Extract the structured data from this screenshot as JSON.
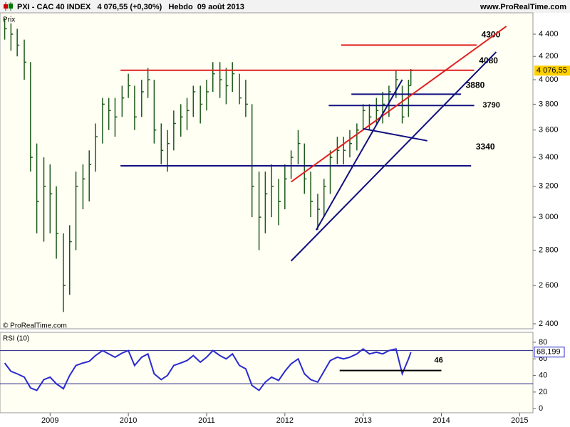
{
  "chart_data": [
    {
      "type": "ohlc",
      "title": "PXI - CAC 40 INDEX   4 076,55 (+0,30%)   Hebdo  09 août 2013",
      "source": "www.ProRealTime.com",
      "y_label": "Prix",
      "copyright": "© ProRealTime.com",
      "x": [
        2008.42,
        2008.5,
        2008.58,
        2008.67,
        2008.75,
        2008.83,
        2008.92,
        2009.0,
        2009.08,
        2009.17,
        2009.25,
        2009.33,
        2009.42,
        2009.5,
        2009.58,
        2009.67,
        2009.75,
        2009.83,
        2009.92,
        2010.0,
        2010.08,
        2010.17,
        2010.25,
        2010.33,
        2010.42,
        2010.5,
        2010.58,
        2010.67,
        2010.75,
        2010.83,
        2010.92,
        2011.0,
        2011.08,
        2011.17,
        2011.25,
        2011.33,
        2011.42,
        2011.5,
        2011.58,
        2011.67,
        2011.75,
        2011.83,
        2011.92,
        2012.0,
        2012.08,
        2012.17,
        2012.25,
        2012.33,
        2012.42,
        2012.5,
        2012.58,
        2012.67,
        2012.75,
        2012.83,
        2012.92,
        2013.0,
        2013.08,
        2013.17,
        2013.25,
        2013.33,
        2013.42,
        2013.5,
        2013.58,
        2013.61
      ],
      "close": [
        4450,
        4400,
        4300,
        4150,
        3400,
        3100,
        3200,
        3150,
        2900,
        2600,
        2850,
        3200,
        3250,
        3350,
        3550,
        3800,
        3750,
        3700,
        3850,
        3950,
        3700,
        3900,
        4000,
        3600,
        3450,
        3500,
        3650,
        3700,
        3750,
        3900,
        3800,
        3900,
        4050,
        4000,
        3950,
        4050,
        3850,
        3800,
        3200,
        3000,
        3150,
        3200,
        3100,
        3250,
        3400,
        3500,
        3250,
        3100,
        3050,
        3200,
        3400,
        3450,
        3450,
        3500,
        3600,
        3750,
        3700,
        3750,
        3800,
        3900,
        4000,
        3700,
        3950,
        4077
      ],
      "high": [
        4550,
        4500,
        4450,
        4350,
        4150,
        3500,
        3400,
        3350,
        3200,
        2900,
        2950,
        3300,
        3350,
        3450,
        3650,
        3850,
        3850,
        3850,
        3950,
        4050,
        3950,
        4000,
        4100,
        4000,
        3650,
        3600,
        3750,
        3800,
        3850,
        3950,
        3950,
        4000,
        4150,
        4150,
        4100,
        4150,
        4050,
        4000,
        3800,
        3300,
        3300,
        3350,
        3250,
        3350,
        3450,
        3600,
        3500,
        3300,
        3150,
        3250,
        3450,
        3550,
        3550,
        3600,
        3650,
        3800,
        3800,
        3850,
        3900,
        3950,
        4080,
        3950,
        4000,
        4090
      ],
      "low": [
        4350,
        4250,
        4200,
        4000,
        3300,
        2900,
        2850,
        2900,
        2750,
        2460,
        2550,
        2800,
        3050,
        3100,
        3300,
        3500,
        3600,
        3550,
        3700,
        3850,
        3600,
        3700,
        3850,
        3500,
        3350,
        3300,
        3450,
        3550,
        3600,
        3700,
        3650,
        3750,
        3900,
        3850,
        3800,
        3900,
        3800,
        3700,
        3000,
        2800,
        2900,
        3000,
        2950,
        3050,
        3250,
        3350,
        3150,
        3000,
        2920,
        3000,
        3150,
        3350,
        3350,
        3400,
        3450,
        3600,
        3600,
        3650,
        3650,
        3700,
        3850,
        3650,
        3700,
        3950
      ],
      "color": "#1d5a1d",
      "log_scale": true,
      "xlim": [
        2008.36,
        2015.17
      ],
      "ylim": [
        2375,
        4601
      ],
      "yticks": [
        {
          "value": 2400,
          "label": "2 400"
        },
        {
          "value": 2600,
          "label": "2 600"
        },
        {
          "value": 2800,
          "label": "2 800"
        },
        {
          "value": 3000,
          "label": "3 000"
        },
        {
          "value": 3200,
          "label": "3 200"
        },
        {
          "value": 3400,
          "label": "3 400"
        },
        {
          "value": 3600,
          "label": "3 600"
        },
        {
          "value": 3800,
          "label": "3 800"
        },
        {
          "value": 4000,
          "label": "4 000"
        },
        {
          "value": 4200,
          "label": "4 200"
        },
        {
          "value": 4400,
          "label": "4 400"
        }
      ],
      "last_value": {
        "value": 4076.55,
        "label": "4 076,55"
      },
      "levels": [
        {
          "value": 4300,
          "label": "4300",
          "color": "#e02020",
          "x": [
            2012.72,
            2014.45
          ]
        },
        {
          "value": 4080,
          "label": "4080",
          "color": "#e02020",
          "x": [
            2009.9,
            2014.42
          ]
        },
        {
          "value": 3880,
          "label": "3880",
          "color": "#101080",
          "x": [
            2012.85,
            2014.25
          ]
        },
        {
          "value": 3790,
          "label": "3790",
          "color": "#101080",
          "x": [
            2012.56,
            2014.42
          ]
        },
        {
          "value": 3340,
          "label": "3340",
          "color": "#101080",
          "x": [
            2009.9,
            2014.38
          ]
        }
      ],
      "trendlines": [
        {
          "x": [
            2012.08,
            2014.83
          ],
          "y": [
            3230,
            4473
          ],
          "color": "#e02020"
        },
        {
          "x": [
            2012.08,
            2014.7
          ],
          "y": [
            2737,
            4239
          ],
          "color": "#101080"
        },
        {
          "x": [
            2012.4,
            2013.5
          ],
          "y": [
            2920,
            4000
          ],
          "color": "#101080"
        },
        {
          "x": [
            2013.0,
            2013.82
          ],
          "y": [
            3610,
            3520
          ],
          "color": "#101080"
        }
      ]
    },
    {
      "type": "line",
      "title": "RSI (10)",
      "x": [
        2008.42,
        2008.5,
        2008.58,
        2008.67,
        2008.75,
        2008.83,
        2008.92,
        2009.0,
        2009.08,
        2009.17,
        2009.25,
        2009.33,
        2009.42,
        2009.5,
        2009.58,
        2009.67,
        2009.75,
        2009.83,
        2009.92,
        2010.0,
        2010.08,
        2010.17,
        2010.25,
        2010.33,
        2010.42,
        2010.5,
        2010.58,
        2010.67,
        2010.75,
        2010.83,
        2010.92,
        2011.0,
        2011.08,
        2011.17,
        2011.25,
        2011.33,
        2011.42,
        2011.5,
        2011.58,
        2011.67,
        2011.75,
        2011.83,
        2011.92,
        2012.0,
        2012.08,
        2012.17,
        2012.25,
        2012.33,
        2012.42,
        2012.5,
        2012.58,
        2012.67,
        2012.75,
        2012.83,
        2012.92,
        2013.0,
        2013.08,
        2013.17,
        2013.25,
        2013.33,
        2013.42,
        2013.5,
        2013.58,
        2013.61
      ],
      "values": [
        55,
        45,
        42,
        38,
        25,
        22,
        35,
        38,
        30,
        24,
        40,
        52,
        55,
        57,
        64,
        70,
        66,
        62,
        67,
        70,
        52,
        62,
        66,
        42,
        35,
        40,
        52,
        55,
        58,
        64,
        56,
        62,
        70,
        64,
        60,
        66,
        52,
        48,
        28,
        22,
        32,
        38,
        34,
        45,
        54,
        60,
        42,
        35,
        32,
        45,
        58,
        62,
        60,
        62,
        66,
        72,
        66,
        68,
        66,
        70,
        72,
        42,
        60,
        68
      ],
      "color": "#2a2ad0",
      "xlim": [
        2008.36,
        2015.17
      ],
      "ylim": [
        -5,
        92
      ],
      "yticks": [
        0,
        20,
        40,
        60,
        80
      ],
      "bands": [
        70,
        30
      ],
      "level": {
        "value": 46,
        "label": "46",
        "x": [
          2012.7,
          2014.0
        ]
      },
      "last_value": {
        "value": 68.199,
        "label": "68,199"
      },
      "xticks": [
        2009,
        2010,
        2011,
        2012,
        2013,
        2014,
        2015
      ]
    }
  ]
}
